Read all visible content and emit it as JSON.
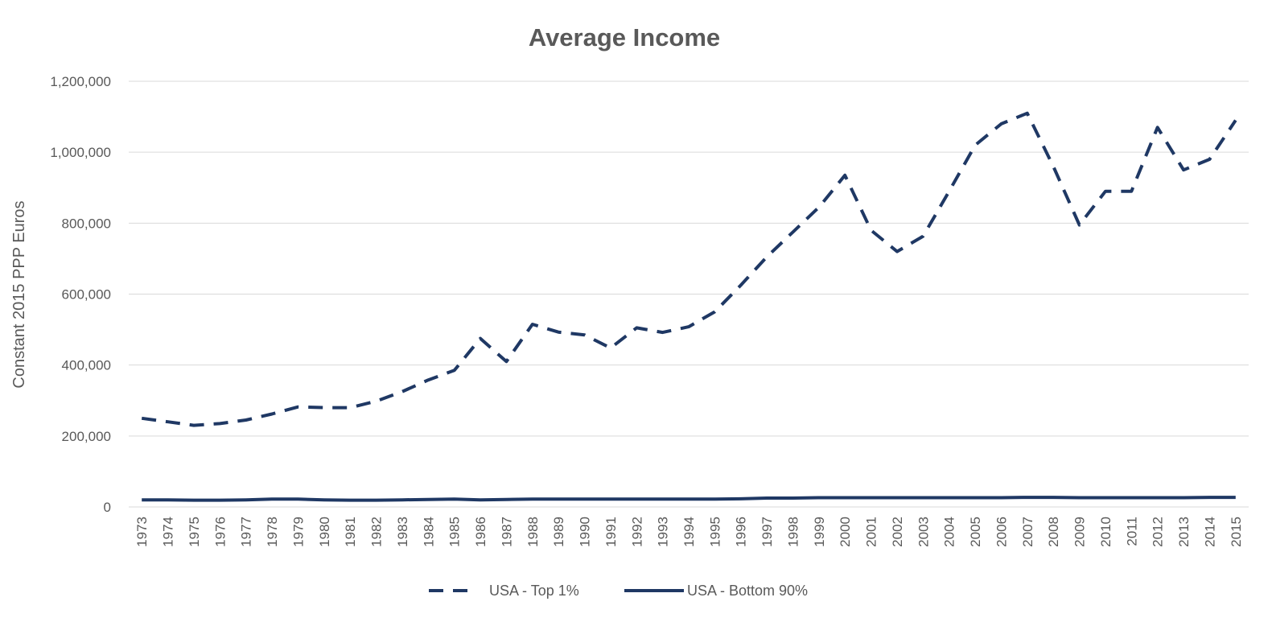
{
  "chart_data": {
    "type": "line",
    "title": "Average Income",
    "ylabel": "Constant 2015 PPP Euros",
    "xlabel": "",
    "ylim": [
      0,
      1200000
    ],
    "yticks": [
      0,
      200000,
      400000,
      600000,
      800000,
      1000000,
      1200000
    ],
    "ytick_labels": [
      "0",
      "200,000",
      "400,000",
      "600,000",
      "800,000",
      "1,000,000",
      "1,200,000"
    ],
    "grid": true,
    "legend_position": "bottom",
    "categories": [
      "1973",
      "1974",
      "1975",
      "1976",
      "1977",
      "1978",
      "1979",
      "1980",
      "1981",
      "1982",
      "1983",
      "1984",
      "1985",
      "1986",
      "1987",
      "1988",
      "1989",
      "1990",
      "1991",
      "1992",
      "1993",
      "1994",
      "1995",
      "1996",
      "1997",
      "1998",
      "1999",
      "2000",
      "2001",
      "2002",
      "2003",
      "2004",
      "2005",
      "2006",
      "2007",
      "2008",
      "2009",
      "2010",
      "2011",
      "2012",
      "2013",
      "2014",
      "2015"
    ],
    "series": [
      {
        "name": "USA - Top 1%",
        "style": "dashed",
        "color": "#1f3864",
        "values": [
          250000,
          240000,
          230000,
          235000,
          245000,
          262000,
          282000,
          280000,
          280000,
          298000,
          325000,
          358000,
          385000,
          475000,
          410000,
          515000,
          493000,
          485000,
          448000,
          505000,
          492000,
          508000,
          550000,
          625000,
          705000,
          775000,
          845000,
          935000,
          780000,
          720000,
          763000,
          890000,
          1020000,
          1080000,
          1110000,
          960000,
          795000,
          890000,
          890000,
          1070000,
          950000,
          980000,
          1090000
        ]
      },
      {
        "name": "USA - Bottom 90%",
        "style": "solid",
        "color": "#1f3864",
        "values": [
          20000,
          20000,
          19000,
          19000,
          20000,
          22000,
          22000,
          20000,
          19000,
          19000,
          20000,
          21000,
          22000,
          20000,
          21000,
          22000,
          22000,
          22000,
          22000,
          22000,
          22000,
          22000,
          22000,
          23000,
          25000,
          25000,
          26000,
          26000,
          26000,
          26000,
          26000,
          26000,
          26000,
          26000,
          27000,
          27000,
          26000,
          26000,
          26000,
          26000,
          26000,
          27000,
          27000
        ]
      }
    ]
  }
}
